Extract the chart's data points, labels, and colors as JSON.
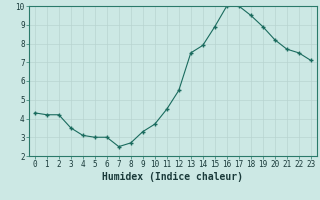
{
  "x": [
    0,
    1,
    2,
    3,
    4,
    5,
    6,
    7,
    8,
    9,
    10,
    11,
    12,
    13,
    14,
    15,
    16,
    17,
    18,
    19,
    20,
    21,
    22,
    23
  ],
  "y": [
    4.3,
    4.2,
    4.2,
    3.5,
    3.1,
    3.0,
    3.0,
    2.5,
    2.7,
    3.3,
    3.7,
    4.5,
    5.5,
    7.5,
    7.9,
    8.9,
    10.0,
    10.0,
    9.5,
    8.9,
    8.2,
    7.7,
    7.5,
    7.1
  ],
  "xlabel": "Humidex (Indice chaleur)",
  "xlim": [
    -0.5,
    23.5
  ],
  "ylim": [
    2,
    10
  ],
  "yticks": [
    2,
    3,
    4,
    5,
    6,
    7,
    8,
    9,
    10
  ],
  "xticks": [
    0,
    1,
    2,
    3,
    4,
    5,
    6,
    7,
    8,
    9,
    10,
    11,
    12,
    13,
    14,
    15,
    16,
    17,
    18,
    19,
    20,
    21,
    22,
    23
  ],
  "line_color": "#1a6b5e",
  "marker_color": "#1a6b5e",
  "bg_color": "#cce8e4",
  "grid_color": "#b8d4d0",
  "tick_label_fontsize": 5.5,
  "xlabel_fontsize": 7
}
